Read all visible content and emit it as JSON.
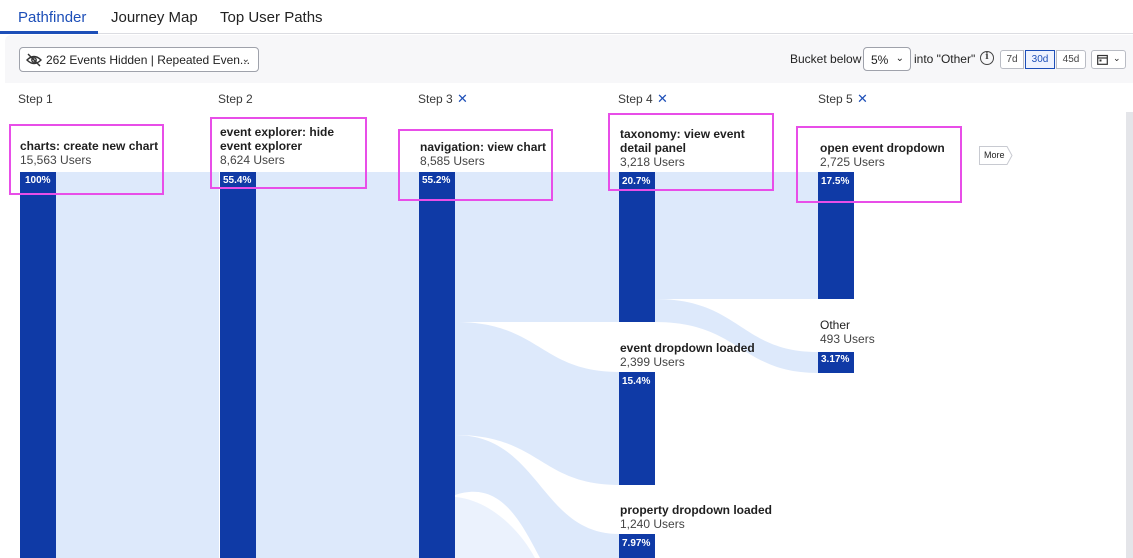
{
  "tabs": [
    {
      "label": "Pathfinder",
      "active": true
    },
    {
      "label": "Journey Map",
      "active": false
    },
    {
      "label": "Top User Paths",
      "active": false
    }
  ],
  "toolbar": {
    "hidden_events_label": "262 Events Hidden | Repeated Even...",
    "bucket_prefix": "Bucket below",
    "bucket_value": "5%",
    "bucket_suffix": "into \"Other\"",
    "info_icon": "i",
    "ranges": [
      "7d",
      "30d",
      "45d"
    ],
    "active_range": "30d",
    "calendar_icon": "calendar-icon"
  },
  "steps": [
    {
      "label": "Step 1",
      "removable": false
    },
    {
      "label": "Step 2",
      "removable": false
    },
    {
      "label": "Step 3",
      "removable": true
    },
    {
      "label": "Step 4",
      "removable": true
    },
    {
      "label": "Step 5",
      "removable": true
    }
  ],
  "nodes": {
    "s1": {
      "title": "charts: create new chart",
      "users": "15,563 Users",
      "pct": "100%"
    },
    "s2": {
      "title": "event explorer: hide event explorer",
      "users": "8,624 Users",
      "pct": "55.4%"
    },
    "s3": {
      "title": "navigation: view chart",
      "users": "8,585 Users",
      "pct": "55.2%"
    },
    "s4a": {
      "title": "taxonomy: view event detail panel",
      "users": "3,218 Users",
      "pct": "20.7%"
    },
    "s4b": {
      "title": "event dropdown loaded",
      "users": "2,399 Users",
      "pct": "15.4%"
    },
    "s4c": {
      "title": "property dropdown loaded",
      "users": "1,240 Users",
      "pct": "7.97%"
    },
    "s5a": {
      "title": "open event dropdown",
      "users": "2,725 Users",
      "pct": "17.5%"
    },
    "s5b": {
      "title": "Other",
      "users": "493 Users",
      "pct": "3.17%"
    }
  },
  "more_label": "More",
  "colors": {
    "accent": "#1d4fb8",
    "bar": "#0f3aa6",
    "flow": "#dde9fb",
    "highlight": "#e84ee8"
  }
}
